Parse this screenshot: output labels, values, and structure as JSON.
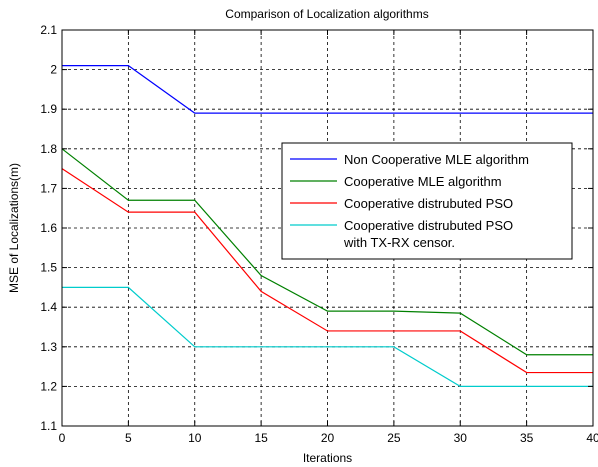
{
  "chart_data": {
    "type": "line",
    "title": "Comparison of Localization algorithms",
    "xlabel": "Iterations",
    "ylabel": "MSE of Localizations(m)",
    "xlim": [
      0,
      40
    ],
    "ylim": [
      1.1,
      2.1
    ],
    "xticks": [
      0,
      5,
      10,
      15,
      20,
      25,
      30,
      35,
      40
    ],
    "yticks": [
      "1.1",
      "1.2",
      "1.3",
      "1.4",
      "1.5",
      "1.6",
      "1.7",
      "1.8",
      "1.9",
      "2",
      "2.1"
    ],
    "grid": true,
    "legend_position": "right",
    "x": [
      0,
      5,
      10,
      15,
      20,
      25,
      30,
      35,
      40
    ],
    "series": [
      {
        "name": "Non Cooperative MLE algorithm",
        "color": "#0000ff",
        "values": [
          2.01,
          2.01,
          1.89,
          1.89,
          1.89,
          1.89,
          1.89,
          1.89,
          1.89
        ]
      },
      {
        "name": "Cooperative MLE algorithm",
        "color": "#008000",
        "values": [
          1.8,
          1.67,
          1.67,
          1.48,
          1.39,
          1.39,
          1.385,
          1.28,
          1.28
        ]
      },
      {
        "name": "Cooperative distrubuted PSO",
        "color": "#ff0000",
        "values": [
          1.75,
          1.64,
          1.64,
          1.44,
          1.34,
          1.34,
          1.34,
          1.235,
          1.235
        ]
      },
      {
        "name_lines": [
          "Cooperative distrubuted PSO",
          "with TX-RX censor."
        ],
        "color": "#00cccc",
        "values": [
          1.45,
          1.45,
          1.3,
          1.3,
          1.3,
          1.3,
          1.2,
          1.2,
          1.2
        ]
      }
    ]
  }
}
